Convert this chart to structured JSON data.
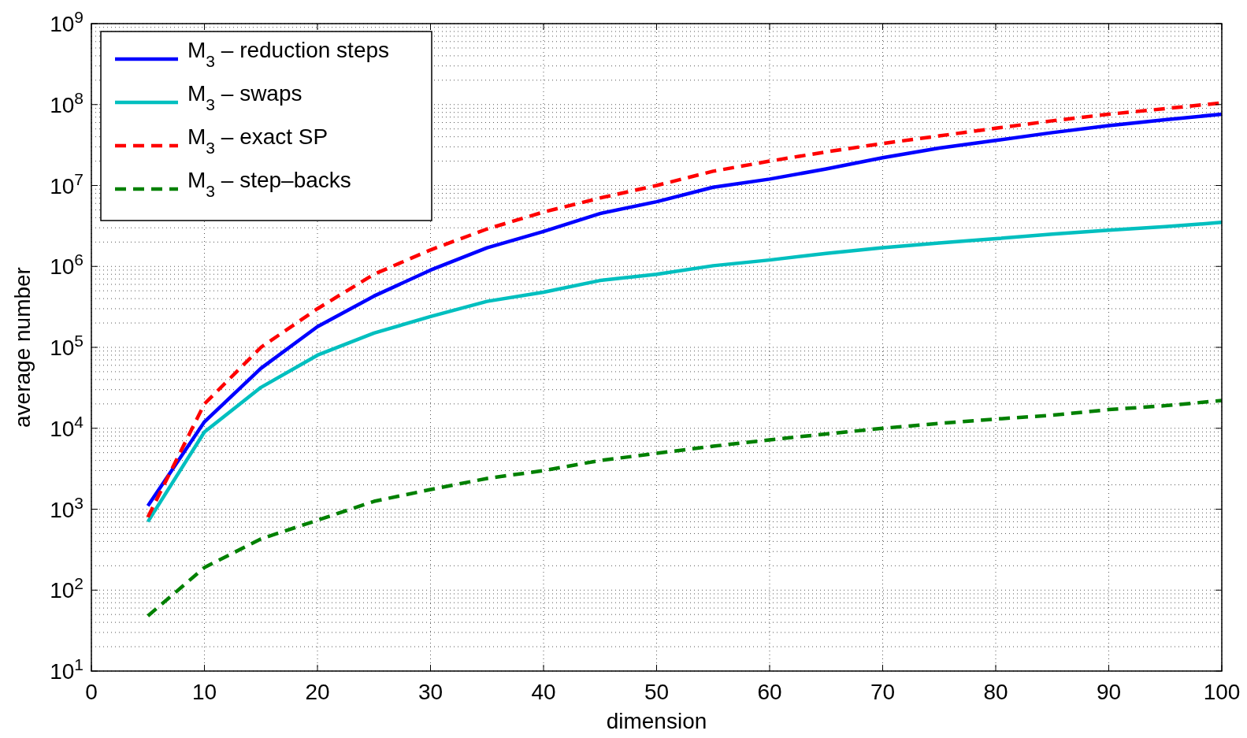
{
  "chart_data": {
    "type": "line",
    "xlabel": "dimension",
    "ylabel": "average number",
    "log": "y",
    "grid": true,
    "legend": "top left",
    "x": [
      5,
      10,
      15,
      20,
      25,
      30,
      35,
      40,
      45,
      50,
      55,
      60,
      65,
      70,
      75,
      80,
      85,
      90,
      95,
      100
    ],
    "xlim": [
      0,
      100
    ],
    "xticks": [
      0,
      10,
      20,
      30,
      40,
      50,
      60,
      70,
      80,
      90,
      100
    ],
    "ylim": [
      10,
      1000000000
    ],
    "yticks": [
      {
        "value": 10,
        "label": "10$^{1}$"
      },
      {
        "value": 100,
        "label": "10$^{2}$"
      },
      {
        "value": 1000,
        "label": "10$^{3}$"
      },
      {
        "value": 10000,
        "label": "10$^{4}$"
      },
      {
        "value": 100000,
        "label": "10$^{5}$"
      },
      {
        "value": 1000000,
        "label": "10$^{6}$"
      },
      {
        "value": 10000000,
        "label": "10$^{7}$"
      },
      {
        "value": 100000000,
        "label": "10$^{8}$"
      },
      {
        "value": 1000000000,
        "label": "10$^{9}$"
      }
    ],
    "series": [
      {
        "name": "M$_{3}$ – reduction steps",
        "color": "#0000ff",
        "line_style": "solid",
        "values": [
          1100,
          12000,
          55000,
          180000,
          430000,
          900000,
          1700000,
          2700000,
          4500000,
          6300000,
          9500000,
          12000000,
          16000000,
          22000000,
          29000000,
          36000000,
          45000000,
          55000000,
          65000000,
          76000000
        ]
      },
      {
        "name": "M$_{3}$ – swaps",
        "color": "#00bfbf",
        "line_style": "solid",
        "values": [
          700,
          9000,
          32000,
          80000,
          150000,
          240000,
          370000,
          480000,
          670000,
          800000,
          1020000,
          1200000,
          1450000,
          1700000,
          1950000,
          2200000,
          2500000,
          2800000,
          3100000,
          3500000
        ]
      },
      {
        "name": "M$_{3}$ – exact SP",
        "color": "#ff0000",
        "line_style": "dashed",
        "values": [
          800,
          20000,
          100000,
          300000,
          800000,
          1600000,
          2900000,
          4700000,
          7000000,
          10000000,
          15000000,
          20000000,
          26000000,
          33000000,
          41000000,
          51000000,
          63000000,
          76000000,
          89000000,
          105000000
        ]
      },
      {
        "name": "M$_{3}$ – step–backs",
        "color": "#008000",
        "line_style": "dashed",
        "values": [
          48,
          190,
          430,
          730,
          1250,
          1750,
          2400,
          3000,
          4000,
          4900,
          6000,
          7200,
          8500,
          10000,
          11500,
          13000,
          14500,
          17000,
          19000,
          22000
        ]
      }
    ]
  }
}
